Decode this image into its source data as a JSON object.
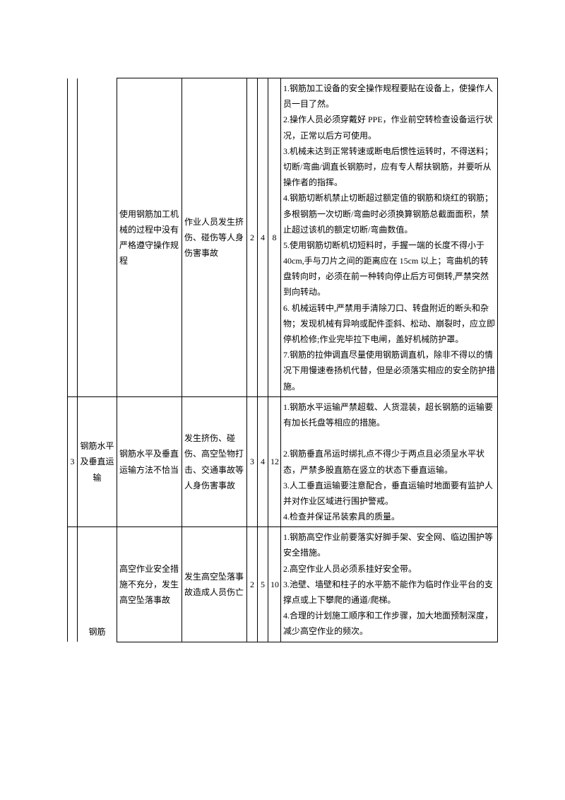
{
  "table": {
    "rows": [
      {
        "idx": "",
        "task": "",
        "cause": "使用钢筋加工机械的过程中没有严格遵守操作规程",
        "consequence": "作业人员发生挤伤、碰伤等人身伤害事故",
        "n1": "2",
        "n2": "4",
        "n3": "8",
        "measures": "1.钢筋加工设备的安全操作规程要贴在设备上，使操作人员一目了然。\n2.操作人员必须穿戴好 PPE，作业前空转检查设备运行状况，正常以后方可使用。\n3.机械未达到正常转速或断电后惯性运转时，不得送料；切断/弯曲/调直长钢筋时，应有专人帮扶钢筋，并要听从操作者的指挥。\n4.钢筋切断机禁止切断超过额定值的钢筋和烧红的钢筋；多根钢筋一次切断/弯曲时必须换算钢筋总截面面积，禁止超过该机的额定切断/弯曲数值。\n5.使用钢筋切断机切短料时，手握一端的长度不得小于 40cm,手与刀片之间的距离应在 15cm 以上；弯曲机的转盘转向时，必须在前一种转向停止后方可倒转,严禁突然到向转动。\n6. 机械运转中,严禁用手清除刀口、转盘附近的断头和杂物；发现机械有异响或配件歪斜、松动、崩裂时，应立即停机检修;作业完毕拉下电闸，盖好机械防护罩。\n7.钢筋的拉伸调直尽量使用钢筋调直机，除非不得以的情况下用慢速卷扬机代替，但是必须落实相应的安全防护措施。"
      },
      {
        "idx": "3",
        "task": "钢筋水平及垂直运输",
        "cause": "钢筋水平及垂直运输方法不恰当",
        "consequence": "发生挤伤、碰伤、高空坠物打击、交通事故等人身伤害事故",
        "n1": "3",
        "n2": "4",
        "n3": "12",
        "measures": "1.钢筋水平运输严禁超载、人货混装，超长钢筋的运输要有加长托盘等相应的措施。\n\n2.钢筋垂直吊运时绑扎点不得少于两点且必须呈水平状态，严禁多股直筋在竖立的状态下垂直运输。\n3.人工垂直运输要注意配合，垂直运输时地面要有监护人并对作业区域进行围护警戒。\n4.检查并保证吊装索具的质量。"
      },
      {
        "idx": "",
        "task": "钢筋",
        "cause": "高空作业安全措施不充分，发生高空坠落事故",
        "consequence": "发生高空坠落事故造成人员伤亡",
        "n1": "2",
        "n2": "5",
        "n3": "10",
        "measures": "1.钢筋高空作业前要落实好脚手架、安全网、临边围护等安全措施。\n2.高空作业人员必须系挂好安全带。\n3.池壁、墙壁和柱子的水平筋不能作为临时作业平台的支撑点或上下攀爬的通道/爬梯。\n4.合理的计划施工顺序和工作步骤，加大地面预制深度，减少高空作业的频次。"
      }
    ]
  }
}
